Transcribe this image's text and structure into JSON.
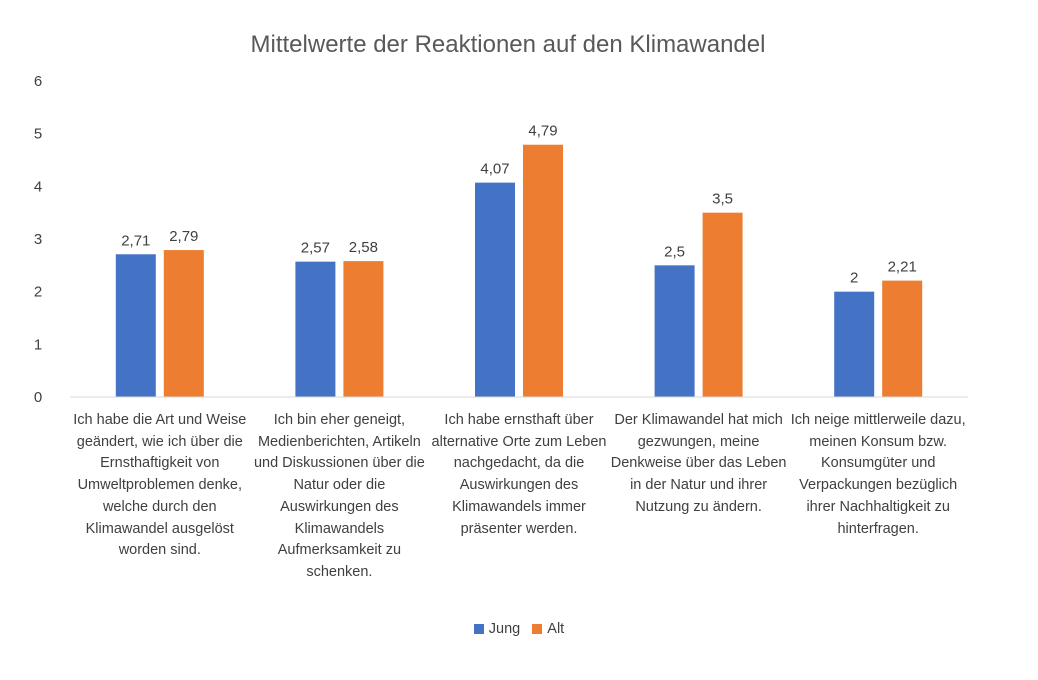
{
  "chart_data": {
    "type": "bar",
    "title": "Mittelwerte der Reaktionen auf den Klimawandel",
    "categories": [
      "Ich habe die Art und Weise geändert, wie ich über die Ernsthaftigkeit von Umweltproblemen denke, welche durch den Klimawandel ausgelöst worden sind.",
      "Ich bin eher geneigt, Medienberichten, Artikeln und Diskussionen über die Natur oder die Auswirkungen des Klimawandels Aufmerksamkeit zu schenken.",
      "Ich habe ernsthaft über alternative Orte zum Leben nachgedacht, da die Auswirkungen des Klimawandels immer präsenter werden.",
      "Der Klimawandel hat mich gezwungen, meine Denkweise über das Leben in der Natur und ihrer Nutzung zu ändern.",
      "Ich neige mittlerweile dazu, meinen Konsum bzw. Konsumgüter und Verpackungen bezüglich ihrer Nachhaltigkeit zu hinterfragen."
    ],
    "series": [
      {
        "name": "Jung",
        "color": "#4472C4",
        "values": [
          2.71,
          2.57,
          4.07,
          2.5,
          2.0
        ],
        "labels": [
          "2,71",
          "2,57",
          "4,07",
          "2,5",
          "2"
        ]
      },
      {
        "name": "Alt",
        "color": "#ED7D31",
        "values": [
          2.79,
          2.58,
          4.79,
          3.5,
          2.21
        ],
        "labels": [
          "2,79",
          "2,58",
          "4,79",
          "3,5",
          "2,21"
        ]
      }
    ],
    "ylim": [
      0,
      6
    ],
    "yticks": [
      "0",
      "1",
      "2",
      "3",
      "4",
      "5",
      "6"
    ],
    "grid": false,
    "legend_position": "bottom"
  }
}
